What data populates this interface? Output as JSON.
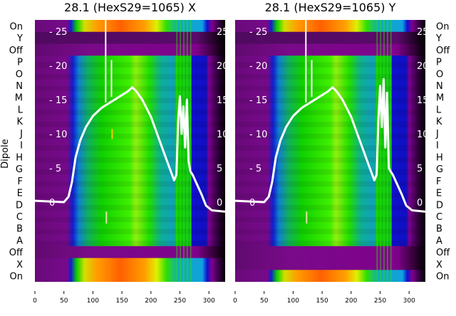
{
  "chart_data": [
    {
      "type": "heatmap",
      "title": "28.1 (HexS29=1065) X",
      "ylabel": "Dipole",
      "row_labels": [
        "On",
        "Y",
        "Off",
        "P",
        "O",
        "N",
        "M",
        "L",
        "K",
        "J",
        "I",
        "H",
        "G",
        "F",
        "E",
        "D",
        "C",
        "B",
        "A",
        "Off",
        "X",
        "On"
      ],
      "row_types": [
        "beam",
        "dark",
        "off",
        "dipole",
        "dipole",
        "dipole",
        "dipole",
        "dipole",
        "dipole",
        "dipole",
        "dipole",
        "dipole",
        "dipole",
        "dipole",
        "dipole",
        "dipole",
        "dipole",
        "dipole",
        "dipole",
        "off",
        "beam",
        "beam"
      ],
      "x_ticks": [
        0,
        50,
        100,
        150,
        200,
        250,
        300
      ],
      "xlim": [
        0,
        328
      ],
      "inner_y_ticks": [
        0,
        5,
        10,
        15,
        20,
        25
      ],
      "profile": {
        "x": [
          0,
          50,
          58,
          64,
          70,
          78,
          88,
          100,
          115,
          130,
          145,
          160,
          168,
          175,
          185,
          200,
          215,
          230,
          240,
          244,
          247,
          250,
          253,
          256,
          259,
          262,
          265,
          268,
          272,
          280,
          288,
          295,
          305,
          328
        ],
        "y": [
          0.2,
          0,
          0.8,
          3,
          6.5,
          9,
          11,
          12.6,
          13.8,
          14.6,
          15.4,
          16.2,
          16.8,
          16.2,
          15,
          12.5,
          9,
          5.5,
          3.2,
          4,
          12,
          15.5,
          10,
          14,
          8,
          15,
          6,
          4.5,
          4,
          2.5,
          1,
          -0.5,
          -1.2,
          -1.4
        ],
        "spikes": [
          {
            "x": 122,
            "y": 27
          },
          {
            "x": 132,
            "y": 20.8
          }
        ]
      }
    },
    {
      "type": "heatmap",
      "title": "28.1 (HexS29=1065) Y",
      "row_labels": [
        "On",
        "Y",
        "Off",
        "P",
        "O",
        "N",
        "M",
        "L",
        "K",
        "J",
        "I",
        "H",
        "G",
        "F",
        "E",
        "D",
        "C",
        "B",
        "A",
        "Off",
        "X",
        "On"
      ],
      "row_types": [
        "beam",
        "dark",
        "off",
        "dipole",
        "dipole",
        "dipole",
        "dipole",
        "dipole",
        "dipole",
        "dipole",
        "dipole",
        "dipole",
        "dipole",
        "dipole",
        "dipole",
        "dipole",
        "dipole",
        "dipole",
        "dipole",
        "off",
        "off",
        "beam"
      ],
      "x_ticks": [
        0,
        50,
        100,
        150,
        200,
        250,
        300
      ],
      "xlim": [
        0,
        328
      ],
      "inner_y_ticks": [
        0,
        5,
        10,
        15,
        20,
        25
      ],
      "profile": {
        "x": [
          0,
          50,
          58,
          64,
          70,
          78,
          88,
          100,
          115,
          130,
          145,
          160,
          168,
          175,
          185,
          200,
          215,
          230,
          240,
          244,
          247,
          250,
          253,
          256,
          259,
          262,
          265,
          268,
          272,
          280,
          288,
          295,
          305,
          328
        ],
        "y": [
          0.2,
          0,
          0.8,
          3,
          6.5,
          9,
          11,
          12.6,
          13.8,
          14.6,
          15.4,
          16.2,
          16.8,
          16.2,
          15,
          12.5,
          9,
          5.5,
          3.2,
          4,
          12,
          17,
          11,
          18,
          8,
          16,
          5,
          4.5,
          4,
          2.5,
          1,
          -0.5,
          -1.2,
          -1.4
        ],
        "spikes": [
          {
            "x": 122,
            "y": 27
          },
          {
            "x": 132,
            "y": 20.8
          }
        ]
      }
    }
  ]
}
